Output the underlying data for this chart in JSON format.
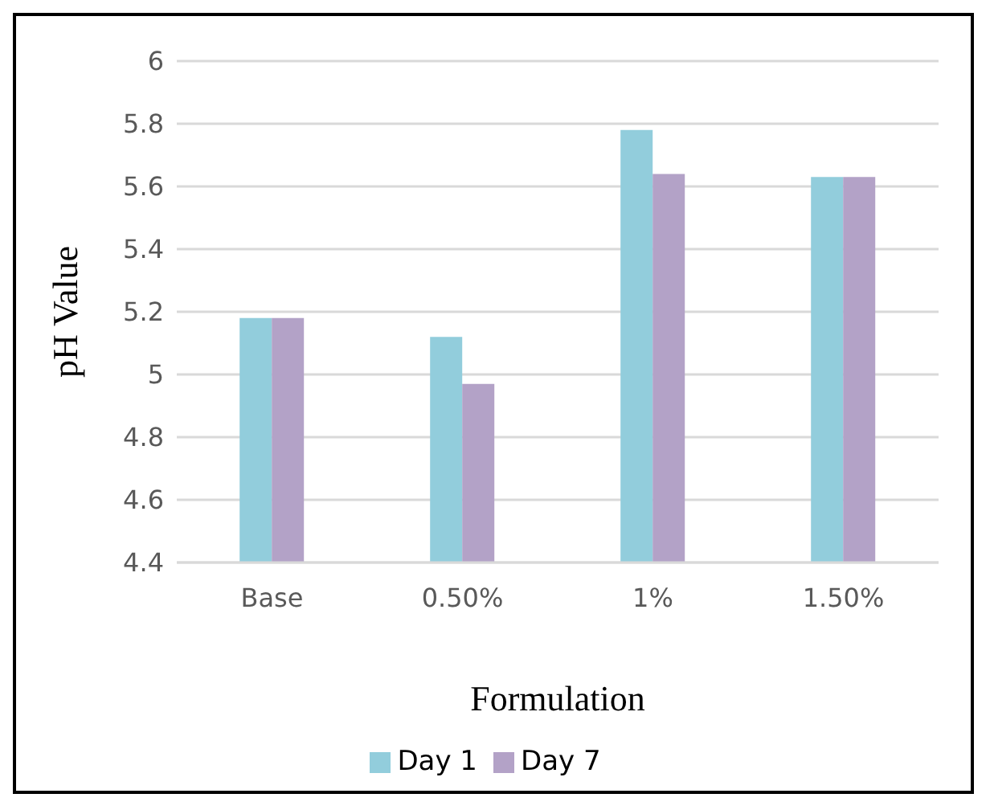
{
  "chart_data": {
    "type": "bar",
    "xlabel": "Formulation",
    "ylabel": "pH Value",
    "categories": [
      "Base",
      "0.50%",
      "1%",
      "1.50%"
    ],
    "series": [
      {
        "name": "Day 1",
        "color": "#92cddc",
        "values": [
          5.18,
          5.12,
          5.78,
          5.63
        ]
      },
      {
        "name": "Day 7",
        "color": "#b3a2c7",
        "values": [
          5.18,
          4.97,
          5.64,
          5.63
        ]
      }
    ],
    "ylim": [
      4.4,
      6
    ],
    "yticks": [
      4.4,
      4.6,
      4.8,
      5,
      5.2,
      5.4,
      5.6,
      5.8,
      6
    ],
    "grid": "y",
    "legend": "bottom"
  }
}
